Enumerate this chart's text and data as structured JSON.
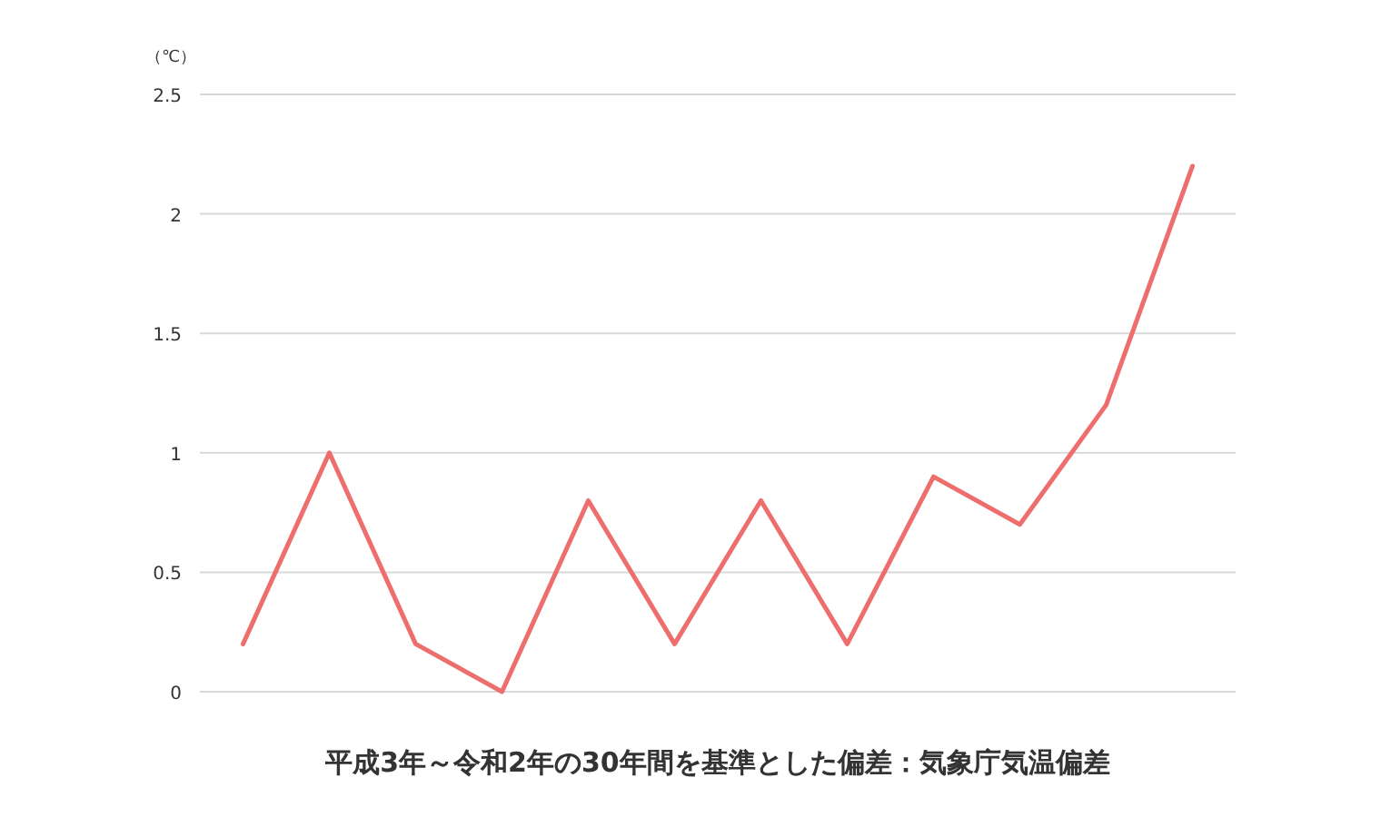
{
  "chart_data": {
    "type": "line",
    "title": "平成3年～令和2年の30年間を基準とした偏差：気象庁気温偏差",
    "ylabel": "（℃）",
    "categories": [
      null,
      null,
      null,
      null,
      null,
      null,
      null,
      null,
      null,
      null,
      null,
      null
    ],
    "series": [
      {
        "color": "#ee6e6e",
        "values": [
          0.2,
          1.0,
          0.2,
          0.0,
          0.8,
          0.2,
          0.8,
          0.2,
          0.9,
          0.7,
          1.2,
          2.2
        ]
      }
    ],
    "ylim": [
      0,
      2.5
    ],
    "yticks": [
      0,
      0.5,
      1,
      1.5,
      2,
      2.5
    ],
    "grid": "y"
  }
}
